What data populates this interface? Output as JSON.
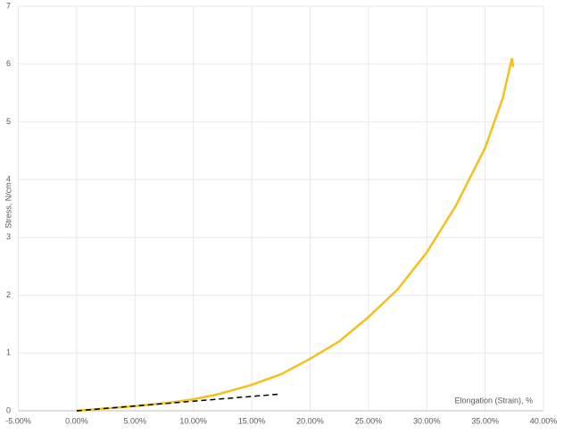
{
  "chart_data": {
    "type": "line",
    "x_label": "Elongation (Strain), %",
    "y_label": "Stress, N/cm",
    "xlim": [
      -5,
      40
    ],
    "xticks": [
      {
        "value": -5,
        "label": "-5.00%"
      },
      {
        "value": 0,
        "label": "0.00%"
      },
      {
        "value": 5,
        "label": "5.00%"
      },
      {
        "value": 10,
        "label": "10.00%"
      },
      {
        "value": 15,
        "label": "15.00%"
      },
      {
        "value": 20,
        "label": "20.00%"
      },
      {
        "value": 25,
        "label": "25.00%"
      },
      {
        "value": 30,
        "label": "30.00%"
      },
      {
        "value": 35,
        "label": "35.00%"
      },
      {
        "value": 40,
        "label": "40.00%"
      }
    ],
    "ylim": [
      0,
      7
    ],
    "yticks": [
      0,
      1,
      2,
      3,
      4,
      5,
      6,
      7
    ],
    "grid": true,
    "series": [
      {
        "color": "#f5c01a",
        "dashed": false,
        "x": [
          0,
          2.5,
          5,
          8,
          10,
          12,
          15,
          17.5,
          20,
          22.5,
          25,
          27.5,
          30,
          32.5,
          35,
          36.5,
          37.3,
          37.4
        ],
        "values": [
          0,
          0.04,
          0.08,
          0.14,
          0.2,
          0.28,
          0.45,
          0.63,
          0.9,
          1.2,
          1.62,
          2.1,
          2.74,
          3.55,
          4.55,
          5.4,
          6.1,
          5.95
        ]
      },
      {
        "color": "#000000",
        "dashed": true,
        "x": [
          0,
          17.5
        ],
        "values": [
          0,
          0.29
        ]
      }
    ]
  }
}
